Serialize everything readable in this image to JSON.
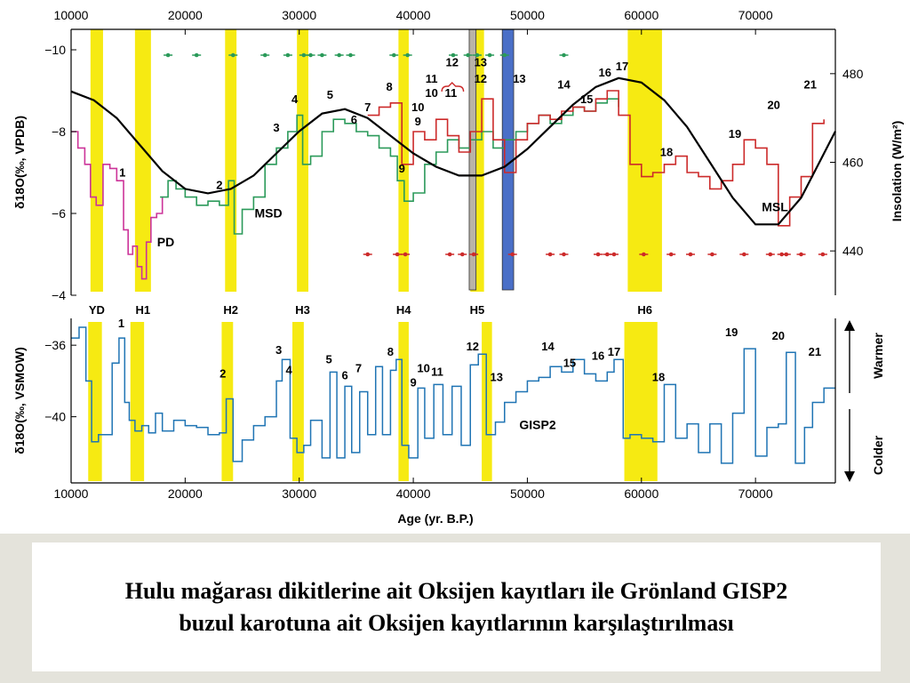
{
  "chart_data": [
    {
      "type": "line",
      "panel": "Hulu Cave speleothem record with insolation",
      "xlim": [
        10000,
        77000
      ],
      "x_ticks": [
        10000,
        20000,
        30000,
        40000,
        50000,
        60000,
        70000
      ],
      "ylabel": "δ18O(‰, VPDB)",
      "ylim": [
        -4,
        -10.5
      ],
      "y_ticks": [
        -10,
        -8,
        -6,
        -4
      ],
      "y_reversed": true,
      "y2label": "Insolation (W/m²)",
      "y2lim": [
        430,
        490
      ],
      "y2_ticks": [
        440,
        460,
        480
      ],
      "heinrich_bands": [
        {
          "label": "YD",
          "from": 11700,
          "to": 12800
        },
        {
          "label": "H1",
          "from": 15600,
          "to": 17000
        },
        {
          "label": "H2",
          "from": 23500,
          "to": 24500
        },
        {
          "label": "H3",
          "from": 29800,
          "to": 30800
        },
        {
          "label": "H4",
          "from": 38700,
          "to": 39600
        },
        {
          "label": "H5",
          "from": 45000,
          "to": 46200
        },
        {
          "label": "H6",
          "from": 58800,
          "to": 61800
        }
      ],
      "highlight_bars": [
        {
          "color": "#b9b3a7",
          "from": 44900,
          "to": 45500
        },
        {
          "color": "#4a6fc7",
          "from": 47800,
          "to": 48800
        }
      ],
      "series": [
        {
          "name": "PD",
          "color": "#cc3399",
          "x": [
            10000,
            10600,
            11200,
            11700,
            12200,
            12800,
            13400,
            14000,
            14600,
            15000,
            15400,
            15800,
            16200,
            16600,
            17000,
            17500,
            18000
          ],
          "y": [
            -8.0,
            -7.6,
            -7.2,
            -6.4,
            -6.2,
            -7.2,
            -7.1,
            -6.8,
            -5.6,
            -5.0,
            -5.2,
            -4.7,
            -4.4,
            -5.3,
            -5.9,
            -6.0,
            -6.4
          ]
        },
        {
          "name": "MSD",
          "color": "#2b9a5a",
          "x": [
            17800,
            18500,
            19200,
            20000,
            21000,
            22000,
            23000,
            23800,
            24300,
            25000,
            26000,
            27000,
            28000,
            29000,
            29800,
            30300,
            31000,
            32000,
            33000,
            34000,
            35000,
            36000,
            37000,
            38000,
            38600,
            39200,
            40000,
            41000,
            42000,
            43000,
            44000,
            45000,
            46000,
            47000,
            48000,
            49000,
            50000,
            51000,
            52000,
            53000,
            54000,
            55000,
            56000,
            57000,
            58000
          ],
          "y": [
            -6.4,
            -6.8,
            -6.6,
            -6.4,
            -6.2,
            -6.3,
            -6.2,
            -6.8,
            -5.5,
            -6.1,
            -6.4,
            -7.2,
            -7.6,
            -8.0,
            -8.4,
            -7.2,
            -7.4,
            -8.0,
            -8.3,
            -8.2,
            -8.0,
            -7.9,
            -7.6,
            -7.4,
            -6.8,
            -6.3,
            -6.5,
            -7.2,
            -7.5,
            -7.8,
            -7.6,
            -7.8,
            -8.0,
            -7.6,
            -7.8,
            -8.0,
            -8.2,
            -8.4,
            -8.2,
            -8.4,
            -8.6,
            -8.5,
            -8.7,
            -8.8,
            -8.6
          ]
        },
        {
          "name": "MSL",
          "color": "#cc2a2a",
          "x": [
            36000,
            37000,
            38000,
            39000,
            40000,
            41000,
            42000,
            43000,
            44000,
            45000,
            46000,
            47000,
            48000,
            49000,
            50000,
            51000,
            52000,
            53000,
            54000,
            55000,
            56000,
            57000,
            58000,
            59000,
            60000,
            61000,
            62000,
            63000,
            64000,
            65000,
            66000,
            67000,
            68000,
            69000,
            70000,
            71000,
            72000,
            73000,
            74000,
            75000,
            76000
          ],
          "y": [
            -8.4,
            -8.6,
            -8.7,
            -7.2,
            -8.0,
            -7.8,
            -8.3,
            -7.9,
            -7.5,
            -8.0,
            -8.8,
            -7.8,
            -7.0,
            -7.8,
            -8.2,
            -8.4,
            -8.3,
            -8.5,
            -8.6,
            -8.5,
            -8.8,
            -9.0,
            -8.4,
            -7.2,
            -6.9,
            -7.0,
            -7.2,
            -7.4,
            -7.0,
            -6.9,
            -6.6,
            -6.8,
            -7.2,
            -7.8,
            -7.6,
            -7.2,
            -5.7,
            -6.4,
            -6.9,
            -8.2,
            -8.3
          ]
        }
      ],
      "insolation": {
        "name": "insolation",
        "color": "#000000",
        "x": [
          10000,
          12000,
          14000,
          16000,
          18000,
          20000,
          22000,
          24000,
          26000,
          28000,
          30000,
          32000,
          34000,
          36000,
          38000,
          40000,
          42000,
          44000,
          46000,
          48000,
          50000,
          52000,
          54000,
          56000,
          58000,
          60000,
          62000,
          64000,
          66000,
          68000,
          70000,
          72000,
          74000,
          76000,
          77000
        ],
        "y": [
          476,
          474,
          470,
          464,
          458,
          454,
          453,
          454,
          457,
          462,
          467,
          471,
          472,
          470,
          466,
          462,
          459,
          457,
          457,
          459,
          463,
          468,
          473,
          477,
          479,
          478,
          474,
          468,
          460,
          452,
          446,
          446,
          452,
          462,
          467
        ]
      },
      "stage_labels_top": [
        {
          "text": "1",
          "x": 14500,
          "y": -6.9,
          "color": "#000000"
        },
        {
          "text": "2",
          "x": 23000,
          "y": -6.6,
          "color": "#000000"
        },
        {
          "text": "3",
          "x": 28000,
          "y": -8.0,
          "color": "#000000"
        },
        {
          "text": "4",
          "x": 29600,
          "y": -8.7,
          "color": "#000000"
        },
        {
          "text": "5",
          "x": 32700,
          "y": -8.8,
          "color": "#000000"
        },
        {
          "text": "6",
          "x": 34800,
          "y": -8.2,
          "color": "#000000"
        },
        {
          "text": "7",
          "x": 36000,
          "y": -8.5,
          "color": "#000000"
        },
        {
          "text": "8",
          "x": 37900,
          "y": -9.0,
          "color": "#000000"
        },
        {
          "text": "9",
          "x": 39000,
          "y": -7.0,
          "color": "#000000"
        },
        {
          "text": "10",
          "x": 40400,
          "y": -8.5,
          "color": "#000000"
        },
        {
          "text": "9",
          "x": 40400,
          "y": -8.15,
          "color": "#3a7fc4"
        },
        {
          "text": "11",
          "x": 41600,
          "y": -9.2,
          "color": "#cc2a2a"
        },
        {
          "text": "10",
          "x": 41600,
          "y": -8.85,
          "color": "#3a7fc4"
        },
        {
          "text": "12",
          "x": 43400,
          "y": -9.6,
          "color": "#cc2a2a"
        },
        {
          "text": "11",
          "x": 43300,
          "y": -8.85,
          "color": "#3a7fc4"
        },
        {
          "text": "13",
          "x": 45900,
          "y": -9.6,
          "color": "#cc2a2a"
        },
        {
          "text": "12",
          "x": 45900,
          "y": -9.2,
          "color": "#3a7fc4"
        },
        {
          "text": "13",
          "x": 49300,
          "y": -9.2,
          "color": "#3a7fc4"
        },
        {
          "text": "14",
          "x": 53200,
          "y": -9.05,
          "color": "#000000"
        },
        {
          "text": "15",
          "x": 55200,
          "y": -8.7,
          "color": "#000000"
        },
        {
          "text": "16",
          "x": 56800,
          "y": -9.35,
          "color": "#000000"
        },
        {
          "text": "17",
          "x": 58300,
          "y": -9.5,
          "color": "#000000"
        },
        {
          "text": "18",
          "x": 62200,
          "y": -7.4,
          "color": "#000000"
        },
        {
          "text": "19",
          "x": 68200,
          "y": -7.85,
          "color": "#000000"
        },
        {
          "text": "20",
          "x": 71600,
          "y": -8.55,
          "color": "#000000"
        },
        {
          "text": "21",
          "x": 74800,
          "y": -9.05,
          "color": "#000000"
        }
      ],
      "series_labels": [
        {
          "text": "PD",
          "x": 18300,
          "y": -5.2,
          "color": "#cc3399"
        },
        {
          "text": "MSD",
          "x": 27300,
          "y": -5.9,
          "color": "#2b9a5a"
        },
        {
          "text": "MSL",
          "x": 71700,
          "y": -6.05,
          "color": "#cc2a2a"
        }
      ],
      "dating_points_green": [
        18500,
        21000,
        24200,
        27000,
        29000,
        30400,
        31000,
        32000,
        33500,
        34500,
        38300,
        39500,
        43500,
        44800,
        45600,
        46700,
        48000,
        53200
      ],
      "dating_points_red": [
        36000,
        38600,
        39300,
        43200,
        44300,
        45300,
        48700,
        52000,
        53200,
        56200,
        57000,
        57600,
        60200,
        62600,
        64300,
        66200,
        69000,
        71300,
        72300,
        72700,
        74000,
        75900
      ]
    },
    {
      "type": "line",
      "panel": "GISP2",
      "xlim": [
        10000,
        77000
      ],
      "x_ticks": [
        10000,
        20000,
        30000,
        40000,
        50000,
        60000,
        70000
      ],
      "xlabel": "Age (yr. B.P.)",
      "ylabel": "δ18O(‰, VSMOW)",
      "ylim": [
        -43.7,
        -34.5
      ],
      "y_ticks": [
        -36,
        -40
      ],
      "right_axis_labels": {
        "top": "Warmer",
        "bottom": "Colder"
      },
      "series": [
        {
          "name": "GISP2",
          "color": "#1f74b4",
          "x": [
            10000,
            10700,
            11300,
            11800,
            12400,
            13000,
            13600,
            14200,
            14700,
            15100,
            15600,
            16200,
            16800,
            17400,
            18000,
            19000,
            20000,
            21000,
            22000,
            23000,
            23600,
            24200,
            25000,
            26000,
            27000,
            28000,
            28500,
            29200,
            29800,
            30400,
            31000,
            32000,
            32700,
            33300,
            34000,
            34600,
            35300,
            36000,
            36700,
            37300,
            38000,
            38500,
            39000,
            39600,
            40400,
            41000,
            41800,
            42600,
            43400,
            44200,
            45000,
            45700,
            46400,
            47200,
            48000,
            49000,
            50000,
            51000,
            52000,
            53000,
            54000,
            55000,
            56000,
            57000,
            57600,
            58400,
            59000,
            60000,
            61000,
            62000,
            63000,
            64000,
            65000,
            66000,
            67000,
            68000,
            69000,
            70000,
            71000,
            72000,
            72700,
            73500,
            74300,
            75000,
            76000,
            77000
          ],
          "y": [
            -35.6,
            -35.0,
            -38.0,
            -41.4,
            -41.0,
            -41.0,
            -37.0,
            -35.6,
            -39.2,
            -40.2,
            -40.8,
            -40.5,
            -40.9,
            -39.8,
            -40.8,
            -40.2,
            -40.5,
            -40.6,
            -41.0,
            -40.9,
            -39.0,
            -42.5,
            -41.3,
            -40.5,
            -40.0,
            -38.0,
            -36.8,
            -41.2,
            -42.0,
            -41.6,
            -40.2,
            -42.3,
            -37.5,
            -42.3,
            -38.3,
            -42.0,
            -38.6,
            -41.0,
            -37.2,
            -41.0,
            -37.4,
            -36.8,
            -41.6,
            -42.3,
            -38.4,
            -41.2,
            -38.2,
            -41.0,
            -38.3,
            -41.6,
            -37.1,
            -36.5,
            -41.0,
            -40.3,
            -39.2,
            -38.6,
            -38.0,
            -37.8,
            -37.2,
            -37.5,
            -36.8,
            -37.6,
            -38.0,
            -37.5,
            -36.8,
            -41.2,
            -41.0,
            -41.2,
            -41.4,
            -38.2,
            -41.2,
            -40.4,
            -42.0,
            -40.4,
            -42.6,
            -39.8,
            -36.2,
            -42.2,
            -40.6,
            -40.4,
            -36.4,
            -42.6,
            -40.6,
            -39.2,
            -38.4,
            -38.4
          ]
        }
      ],
      "heinrich_bands": [
        {
          "from": 11500,
          "to": 12700
        },
        {
          "from": 15200,
          "to": 16400
        },
        {
          "from": 23200,
          "to": 24200
        },
        {
          "from": 29400,
          "to": 30400
        },
        {
          "from": 38700,
          "to": 39600
        },
        {
          "from": 46000,
          "to": 46900
        },
        {
          "from": 58500,
          "to": 61400
        }
      ],
      "event_labels": [
        {
          "text": "1",
          "x": 14400,
          "y": -35.0
        },
        {
          "text": "2",
          "x": 23300,
          "y": -37.8
        },
        {
          "text": "3",
          "x": 28200,
          "y": -36.5
        },
        {
          "text": "4",
          "x": 29100,
          "y": -37.6
        },
        {
          "text": "5",
          "x": 32600,
          "y": -37.0
        },
        {
          "text": "6",
          "x": 34000,
          "y": -37.9
        },
        {
          "text": "7",
          "x": 35200,
          "y": -37.5
        },
        {
          "text": "8",
          "x": 38000,
          "y": -36.6
        },
        {
          "text": "9",
          "x": 40000,
          "y": -38.3
        },
        {
          "text": "10",
          "x": 40900,
          "y": -37.5
        },
        {
          "text": "11",
          "x": 42100,
          "y": -37.7
        },
        {
          "text": "12",
          "x": 45200,
          "y": -36.3
        },
        {
          "text": "13",
          "x": 47300,
          "y": -38.0
        },
        {
          "text": "14",
          "x": 51800,
          "y": -36.3
        },
        {
          "text": "15",
          "x": 53700,
          "y": -37.2
        },
        {
          "text": "16",
          "x": 56200,
          "y": -36.8
        },
        {
          "text": "17",
          "x": 57600,
          "y": -36.6
        },
        {
          "text": "18",
          "x": 61500,
          "y": -38.0
        },
        {
          "text": "19",
          "x": 67900,
          "y": -35.5
        },
        {
          "text": "20",
          "x": 72000,
          "y": -35.7
        },
        {
          "text": "21",
          "x": 75200,
          "y": -36.6
        }
      ],
      "series_label": {
        "text": "GISP2",
        "x": 50900,
        "y": -40.7,
        "color": "#2f3f9e"
      }
    }
  ],
  "caption": {
    "line1": "Hulu mağarası dikitlerine ait Oksijen kayıtları ile Grönland GISP2",
    "line2": "buzul karotuna ait Oksijen kayıtlarının karşılaştırılması"
  }
}
